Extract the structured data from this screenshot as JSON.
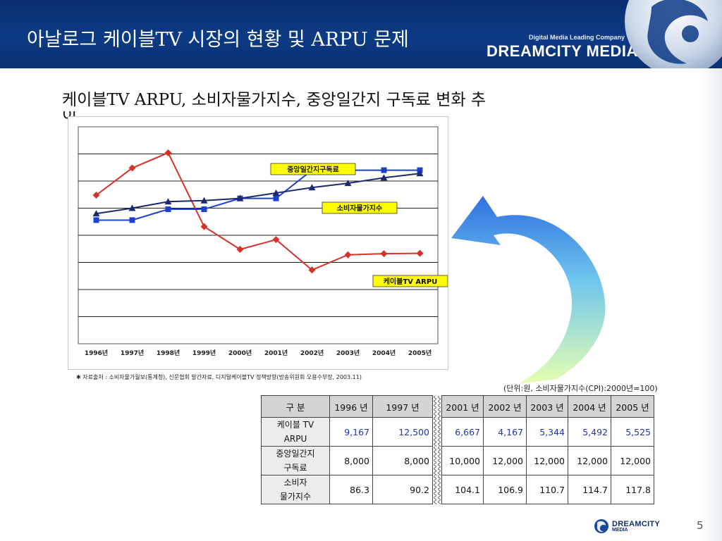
{
  "header": {
    "title": "아날로그 케이블TV 시장의 현황 및 ARPU 문제",
    "brand_tagline": "Digital Media Leading Company",
    "brand_name": "DREAMCITY MEDIA"
  },
  "subtitle": "케이블TV ARPU, 소비자물가지수, 중앙일간지 구독료 변화 추",
  "subtitle_overflow": "이",
  "source_note": "✱ 자료출처 : 소비자물가월보(통계청), 신문협회 발간자료, 디지털케이블TV 정책방향(방송위원회 오용수부장, 2003.11)",
  "unit_note": "(단위:원,  소비자물가지수(CPI):2000년=100)",
  "page_number": "5",
  "footer_logo": {
    "name": "DREAMCITY",
    "sub": "MEDIA"
  },
  "colors": {
    "header_bg": "#0b3680",
    "arpu": "#d6322a",
    "newspaper": "#1c3fd1",
    "cpi": "#1c2a6b",
    "label_bg": "#ffff00"
  },
  "chart_data": {
    "type": "line",
    "categories": [
      "1996년",
      "1997년",
      "1998년",
      "1999년",
      "2000년",
      "2001년",
      "2002년",
      "2003년",
      "2004년",
      "2005년"
    ],
    "series": [
      {
        "name": "케이블TV ARPU",
        "color": "#d6322a",
        "marker": "diamond",
        "values": [
          68.5,
          81,
          88,
          54,
          43.5,
          48,
          34,
          41,
          41.5,
          41.7
        ]
      },
      {
        "name": "중앙일간지구독료",
        "color": "#1c3fd1",
        "marker": "square",
        "values": [
          57,
          57,
          62,
          62,
          67,
          67,
          80,
          80,
          80,
          80
        ]
      },
      {
        "name": "소비자물가지수",
        "color": "#1c2a6b",
        "marker": "triangle",
        "values": [
          60,
          62.5,
          65.5,
          66,
          67,
          69.5,
          72,
          74,
          76.5,
          78.5
        ]
      }
    ],
    "ylim": [
      0,
      100
    ],
    "grid": true,
    "labels": [
      {
        "text": "중앙일간지구독료",
        "series": "중앙일간지구독료"
      },
      {
        "text": "소비자물가지수",
        "series": "소비자물가지수"
      },
      {
        "text": "케이블TV ARPU",
        "series": "케이블TV ARPU"
      }
    ]
  },
  "table": {
    "header": [
      "구    분",
      "1996 년",
      "1997 년",
      "2001 년",
      "2002 년",
      "2003 년",
      "2004 년",
      "2005 년"
    ],
    "rows": [
      {
        "label1": "케이블 TV",
        "label2": "ARPU",
        "values": [
          "9,167",
          "12,500",
          "6,667",
          "4,167",
          "5,344",
          "5,492",
          "5,525"
        ]
      },
      {
        "label1": "중앙일간지",
        "label2": "구독료",
        "values": [
          "8,000",
          "8,000",
          "10,000",
          "12,000",
          "12,000",
          "12,000",
          "12,000"
        ]
      },
      {
        "label1": "소비자",
        "label2": "물가지수",
        "values": [
          "86.3",
          "90.2",
          "104.1",
          "106.9",
          "110.7",
          "114.7",
          "117.8"
        ]
      }
    ]
  }
}
